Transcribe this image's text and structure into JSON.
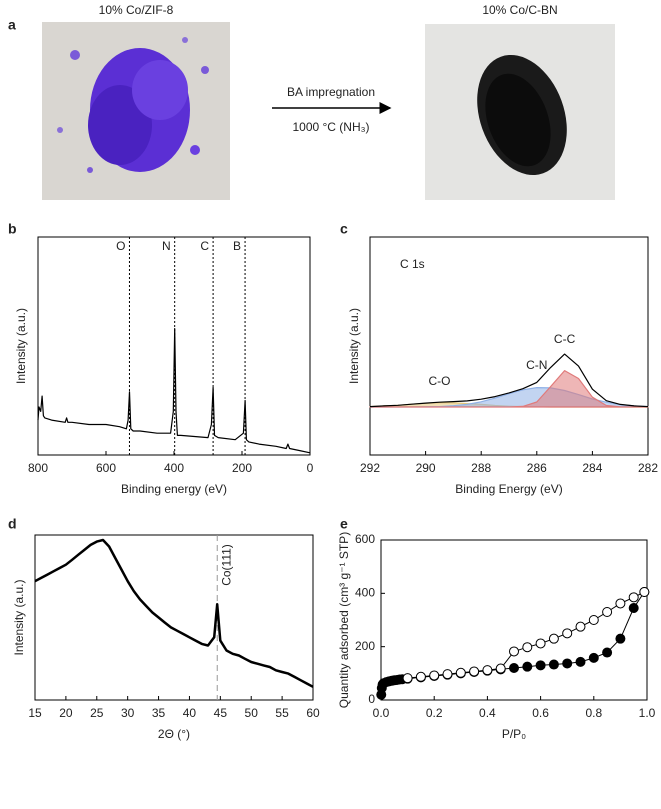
{
  "panel_a": {
    "label": "a",
    "left_caption": "10% Co/ZIF-8",
    "right_caption": "10% Co/C-BN",
    "arrow_top": "BA impregnation",
    "arrow_bottom": "1000 °C (NH₃)"
  },
  "chart_data": [
    {
      "panel": "b",
      "type": "line",
      "xlabel": "Binding energy (eV)",
      "ylabel": "Intensity (a.u.)",
      "xlim": [
        800,
        0
      ],
      "xticks": [
        800,
        600,
        400,
        200,
        0
      ],
      "ylim": [
        0,
        100
      ],
      "annotations": [
        {
          "text": "O",
          "x": 531
        },
        {
          "text": "N",
          "x": 398
        },
        {
          "text": "C",
          "x": 285
        },
        {
          "text": "B",
          "x": 191
        }
      ],
      "x": [
        800,
        797,
        792,
        788,
        784,
        780,
        760,
        720,
        716,
        712,
        700,
        650,
        600,
        560,
        540,
        535,
        531,
        527,
        520,
        500,
        450,
        410,
        402,
        398,
        394,
        390,
        380,
        300,
        290,
        285,
        281,
        270,
        220,
        196,
        191,
        187,
        180,
        150,
        100,
        70,
        65,
        60,
        30,
        0
      ],
      "series": [
        {
          "color": "#000000",
          "values": [
            16,
            22,
            20,
            27,
            18,
            17,
            16,
            15,
            17,
            15,
            15,
            14,
            14,
            13,
            12,
            16,
            29,
            12,
            11,
            11,
            10,
            10,
            20,
            58,
            20,
            9,
            9,
            8,
            14,
            31,
            9,
            8,
            7,
            10,
            25,
            7,
            6,
            5,
            4,
            3,
            5,
            3,
            2,
            1
          ]
        }
      ]
    },
    {
      "panel": "c",
      "type": "line",
      "xlabel": "Binding Energy (eV)",
      "ylabel": "Intensity (a.u.)",
      "xlim": [
        292,
        282
      ],
      "xticks": [
        292,
        290,
        288,
        286,
        284,
        282
      ],
      "ylim": [
        0,
        100
      ],
      "annotations": [
        {
          "text": "C 1s"
        }
      ],
      "x": [
        292,
        291.5,
        291,
        290.5,
        290,
        289.5,
        289,
        288.5,
        288,
        287.5,
        287,
        286.5,
        286,
        285.5,
        285,
        284.5,
        284,
        283.5,
        283,
        282.5,
        282
      ],
      "series": [
        {
          "color": "#000000",
          "values": [
            22.2,
            22.5,
            22.8,
            23.3,
            23.8,
            24.2,
            24.5,
            24.8,
            25.6,
            26.8,
            28.5,
            30.4,
            33.3,
            40.2,
            46.3,
            40.8,
            30.2,
            24.9,
            23.2,
            22.5,
            22.2
          ]
        },
        {
          "name": "C-C",
          "color": "#e07a7a",
          "values": [
            22,
            22,
            22,
            22,
            22,
            22,
            22,
            22,
            22,
            22,
            22,
            22.3,
            24.3,
            31.4,
            38.7,
            35.1,
            26.5,
            22.7,
            22.1,
            22,
            22
          ]
        },
        {
          "name": "C-N",
          "color": "#8fb0e6",
          "values": [
            22,
            22,
            22,
            22,
            22.1,
            22.2,
            22.6,
            23.2,
            24.4,
            26.1,
            28.1,
            29.9,
            30.9,
            30.8,
            29.6,
            27.7,
            25.7,
            24.2,
            23.1,
            22.5,
            22.2
          ]
        },
        {
          "name": "C-O",
          "color": "#e6c77a",
          "values": [
            22.2,
            22.5,
            22.8,
            23.3,
            23.7,
            24,
            23.9,
            23.6,
            23.2,
            22.7,
            22.4,
            22.2,
            22.1,
            22,
            22,
            22,
            22,
            22,
            22,
            22,
            22
          ]
        }
      ]
    },
    {
      "panel": "d",
      "type": "line",
      "xlabel": "2Θ (°)",
      "ylabel": "Intensity (a.u.)",
      "xlim": [
        15,
        60
      ],
      "xticks": [
        15,
        20,
        25,
        30,
        35,
        40,
        45,
        50,
        55,
        60
      ],
      "ylim": [
        0,
        100
      ],
      "annotations": [
        {
          "text": "Co(111)",
          "x": 44.5
        }
      ],
      "x": [
        15,
        16,
        17,
        18,
        19,
        20,
        21,
        22,
        23,
        24,
        25,
        26,
        27,
        28,
        29,
        30,
        31,
        32,
        33,
        34,
        35,
        36,
        37,
        38,
        39,
        40,
        41,
        42,
        43,
        44,
        44.5,
        45,
        46,
        47,
        48,
        49,
        50,
        51,
        52,
        53,
        54,
        55,
        56,
        57,
        58,
        59,
        60
      ],
      "series": [
        {
          "color": "#000000",
          "values": [
            72,
            74,
            76,
            78,
            80,
            82,
            85,
            88,
            91,
            94,
            96,
            97,
            93,
            86,
            79,
            72,
            66,
            61,
            57,
            53,
            50,
            47,
            44,
            42,
            40,
            38,
            36,
            34,
            33,
            38,
            58,
            36,
            30,
            28,
            27,
            25,
            23,
            22,
            21,
            20,
            18,
            17,
            16,
            14,
            12,
            10,
            8
          ]
        }
      ]
    },
    {
      "panel": "e",
      "type": "scatter",
      "xlabel": "P/P₀",
      "ylabel": "Quantity adsorbed (cm³ g⁻¹ STP)",
      "xlim": [
        0,
        1
      ],
      "xticks": [
        {
          "value": 0,
          "label": "0.0"
        },
        0.2,
        0.4,
        0.6,
        0.8,
        {
          "value": 1,
          "label": "1.0"
        }
      ],
      "ylim": [
        0,
        600
      ],
      "yticks": [
        0,
        200,
        400,
        600
      ],
      "series": [
        {
          "color": "#000000",
          "fill": "#000000",
          "x": [
            0.001,
            0.003,
            0.006,
            0.01,
            0.02,
            0.03,
            0.04,
            0.05,
            0.06,
            0.07,
            0.08,
            0.1,
            0.15,
            0.2,
            0.25,
            0.3,
            0.35,
            0.4,
            0.45,
            0.5,
            0.55,
            0.6,
            0.65,
            0.7,
            0.75,
            0.8,
            0.85,
            0.9,
            0.95,
            0.99
          ],
          "values": [
            20,
            45,
            58,
            63,
            67,
            70,
            72,
            74,
            75,
            77,
            78,
            80,
            85,
            90,
            95,
            100,
            105,
            110,
            115,
            120,
            125,
            130,
            133,
            137,
            143,
            158,
            178,
            230,
            345,
            405
          ]
        },
        {
          "color": "#000000",
          "fill": "#ffffff",
          "x": [
            0.99,
            0.95,
            0.9,
            0.85,
            0.8,
            0.75,
            0.7,
            0.65,
            0.6,
            0.55,
            0.5,
            0.45,
            0.4,
            0.35,
            0.3,
            0.25,
            0.2,
            0.15,
            0.1
          ],
          "values": [
            405,
            385,
            362,
            330,
            300,
            275,
            250,
            230,
            212,
            198,
            182,
            118,
            112,
            107,
            102,
            97,
            92,
            87,
            82
          ]
        }
      ]
    }
  ]
}
